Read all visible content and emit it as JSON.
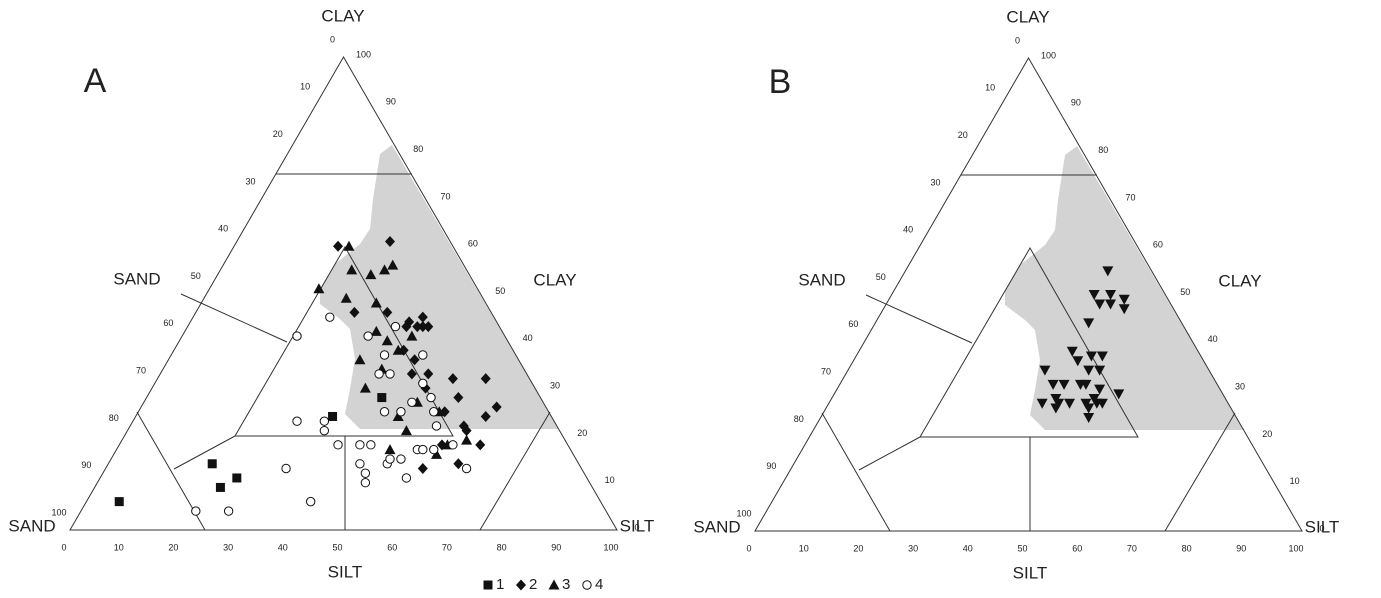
{
  "chart_data": [
    {
      "type": "ternary",
      "title": "A",
      "top_label": "CLAY",
      "left_corner_label": "SAND",
      "right_corner_label": "SILT",
      "left_label": "SAND",
      "right_label": "CLAY",
      "bottom_label": "SILT",
      "legend": "bottom",
      "sandticks": [
        0,
        10,
        20,
        30,
        40,
        50,
        60,
        70,
        80,
        90,
        100
      ],
      "siltticks": [
        0,
        10,
        20,
        30,
        40,
        50,
        60,
        70,
        80,
        90,
        100
      ],
      "clayticks": [
        0,
        10,
        20,
        30,
        40,
        50,
        60,
        70,
        80,
        90,
        100
      ],
      "series": [
        {
          "name": "1",
          "marker": "square",
          "color": "#111111",
          "silt": [
            6,
            19,
            23,
            25,
            36,
            43
          ],
          "clay": [
            6,
            14,
            9,
            11,
            24,
            28
          ]
        },
        {
          "name": "2",
          "marker": "diamond",
          "color": "#111111",
          "silt": [
            19,
            28,
            29,
            35,
            40,
            40,
            42,
            42,
            43,
            44,
            42,
            46,
            45,
            50,
            49,
            54,
            60,
            57,
            65,
            64,
            56,
            61,
            66,
            62,
            58,
            64,
            59
          ],
          "clay": [
            60,
            61,
            46,
            46,
            43,
            44,
            45,
            43,
            43,
            43,
            38,
            33,
            36,
            30,
            33,
            32,
            32,
            28,
            26,
            24,
            25,
            22,
            18,
            21,
            13,
            14,
            18
          ]
        },
        {
          "name": "3",
          "marker": "triangle",
          "color": "#111111",
          "silt": [
            21,
            24,
            28,
            30,
            31,
            20,
            26,
            32,
            35,
            38,
            35,
            41,
            42,
            40,
            39,
            50,
            48,
            51,
            59,
            60,
            63,
            55,
            50
          ],
          "clay": [
            60,
            55,
            54,
            55,
            56,
            51,
            49,
            48,
            42,
            40,
            36,
            38,
            41,
            34,
            30,
            27,
            24,
            21,
            16,
            18,
            19,
            25,
            17
          ]
        },
        {
          "name": "4",
          "marker": "circle-open",
          "color": "#111111",
          "silt": [
            25,
            21,
            30,
            35,
            36,
            40,
            44,
            46,
            46,
            48,
            49,
            51,
            51,
            53,
            56,
            55,
            56,
            58,
            66,
            33,
            41,
            21,
            27,
            38,
            39,
            46,
            42,
            40,
            49,
            48,
            49,
            52,
            54,
            56,
            45,
            61,
            34
          ],
          "clay": [
            45,
            41,
            23,
            23,
            21,
            18,
            18,
            18,
            14,
            12,
            10,
            14,
            15,
            15,
            11,
            17,
            17,
            17,
            13,
            13,
            6,
            4,
            4,
            43,
            37,
            37,
            33,
            33,
            31,
            25,
            27,
            28,
            25,
            22,
            25,
            18,
            41
          ]
        }
      ]
    },
    {
      "type": "ternary",
      "title": "B",
      "top_label": "CLAY",
      "left_corner_label": "SAND",
      "right_corner_label": "SILT",
      "left_label": "SAND",
      "right_label": "CLAY",
      "bottom_label": "SILT",
      "sandticks": [
        0,
        10,
        20,
        30,
        40,
        50,
        60,
        70,
        80,
        90,
        100
      ],
      "siltticks": [
        0,
        10,
        20,
        30,
        40,
        50,
        60,
        70,
        80,
        90,
        100
      ],
      "clayticks": [
        0,
        10,
        20,
        30,
        40,
        50,
        60,
        70,
        80,
        90,
        100
      ],
      "series": [
        {
          "marker": "triangle-down",
          "color": "#111111",
          "silt": [
            37,
            37,
            39,
            41,
            40,
            43,
            44,
            39,
            39,
            43,
            45,
            41,
            44,
            46,
            36,
            39,
            41,
            44,
            45,
            48,
            52,
            39,
            42,
            44,
            47,
            49,
            50,
            42,
            48,
            49,
            48,
            41
          ],
          "clay": [
            55,
            50,
            48,
            48,
            50,
            49,
            47,
            44,
            38,
            37,
            37,
            36,
            34,
            34,
            34,
            31,
            31,
            31,
            31,
            30,
            29,
            27,
            27,
            27,
            27,
            27,
            27,
            26,
            26,
            24,
            28,
            28
          ]
        }
      ]
    }
  ]
}
